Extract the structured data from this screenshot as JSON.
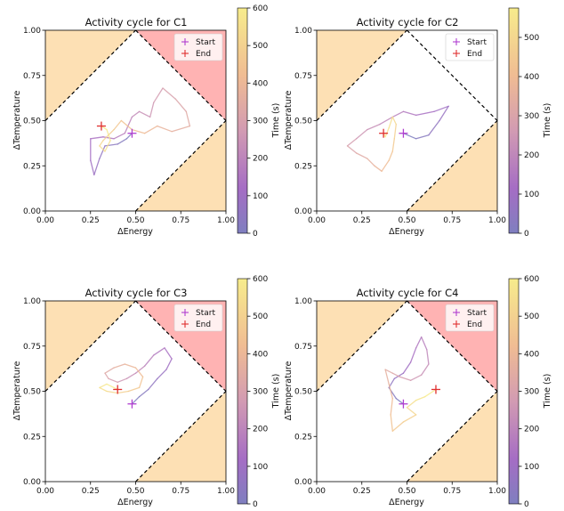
{
  "chart_data": [
    {
      "type": "line",
      "title": "Activity cycle for C1",
      "xlabel": "ΔEnergy",
      "ylabel": "ΔTemperature",
      "xlim": [
        0,
        1
      ],
      "ylim": [
        0,
        1
      ],
      "xticks": [
        "0.00",
        "0.25",
        "0.50",
        "0.75",
        "1.00"
      ],
      "yticks": [
        "0.00",
        "0.25",
        "0.50",
        "0.75",
        "1.00"
      ],
      "colorbar": {
        "label": "Time (s)",
        "ticks": [
          "0",
          "100",
          "200",
          "300",
          "400",
          "500",
          "600"
        ],
        "max": 600
      },
      "legend": {
        "placement": "top-right",
        "start_label": "Start",
        "end_label": "End"
      },
      "start": [
        0.48,
        0.43
      ],
      "end": [
        0.31,
        0.47
      ],
      "trajectory": [
        [
          0.48,
          0.43
        ],
        [
          0.45,
          0.4
        ],
        [
          0.4,
          0.37
        ],
        [
          0.33,
          0.36
        ],
        [
          0.3,
          0.29
        ],
        [
          0.27,
          0.2
        ],
        [
          0.25,
          0.28
        ],
        [
          0.25,
          0.4
        ],
        [
          0.32,
          0.41
        ],
        [
          0.38,
          0.4
        ],
        [
          0.44,
          0.43
        ],
        [
          0.48,
          0.52
        ],
        [
          0.52,
          0.55
        ],
        [
          0.58,
          0.52
        ],
        [
          0.6,
          0.6
        ],
        [
          0.65,
          0.68
        ],
        [
          0.72,
          0.62
        ],
        [
          0.78,
          0.55
        ],
        [
          0.8,
          0.47
        ],
        [
          0.7,
          0.44
        ],
        [
          0.62,
          0.47
        ],
        [
          0.55,
          0.43
        ],
        [
          0.48,
          0.45
        ],
        [
          0.42,
          0.5
        ],
        [
          0.38,
          0.45
        ],
        [
          0.35,
          0.42
        ],
        [
          0.32,
          0.39
        ],
        [
          0.3,
          0.36
        ],
        [
          0.33,
          0.33
        ],
        [
          0.36,
          0.39
        ],
        [
          0.34,
          0.45
        ],
        [
          0.31,
          0.47
        ]
      ]
    },
    {
      "type": "line",
      "title": "Activity cycle for C2",
      "xlabel": "ΔEnergy",
      "ylabel": "ΔTemperature",
      "xlim": [
        0,
        1
      ],
      "ylim": [
        0,
        1
      ],
      "xticks": [
        "0.00",
        "0.25",
        "0.50",
        "0.75",
        "1.00"
      ],
      "yticks": [
        "0.00",
        "0.25",
        "0.50",
        "0.75",
        "1.00"
      ],
      "colorbar": {
        "label": "Time (s)",
        "ticks": [
          "0",
          "100",
          "200",
          "300",
          "400",
          "500"
        ],
        "max": 575
      },
      "legend": {
        "placement": "top-right",
        "start_label": "Start",
        "end_label": "End"
      },
      "start": [
        0.48,
        0.43
      ],
      "end": [
        0.37,
        0.43
      ],
      "trajectory": [
        [
          0.48,
          0.43
        ],
        [
          0.55,
          0.4
        ],
        [
          0.62,
          0.42
        ],
        [
          0.68,
          0.5
        ],
        [
          0.73,
          0.58
        ],
        [
          0.65,
          0.55
        ],
        [
          0.55,
          0.53
        ],
        [
          0.48,
          0.55
        ],
        [
          0.42,
          0.52
        ],
        [
          0.35,
          0.48
        ],
        [
          0.28,
          0.45
        ],
        [
          0.22,
          0.4
        ],
        [
          0.17,
          0.36
        ],
        [
          0.22,
          0.32
        ],
        [
          0.28,
          0.29
        ],
        [
          0.32,
          0.25
        ],
        [
          0.36,
          0.22
        ],
        [
          0.4,
          0.28
        ],
        [
          0.42,
          0.33
        ],
        [
          0.43,
          0.4
        ],
        [
          0.44,
          0.48
        ],
        [
          0.42,
          0.52
        ],
        [
          0.4,
          0.46
        ],
        [
          0.38,
          0.41
        ],
        [
          0.37,
          0.43
        ]
      ]
    },
    {
      "type": "line",
      "title": "Activity cycle for C3",
      "xlabel": "ΔEnergy",
      "ylabel": "ΔTemperature",
      "xlim": [
        0,
        1
      ],
      "ylim": [
        0,
        1
      ],
      "xticks": [
        "0.00",
        "0.25",
        "0.50",
        "0.75",
        "1.00"
      ],
      "yticks": [
        "0.00",
        "0.25",
        "0.50",
        "0.75",
        "1.00"
      ],
      "colorbar": {
        "label": "Time (s)",
        "ticks": [
          "0",
          "100",
          "200",
          "300",
          "400",
          "500",
          "600"
        ],
        "max": 600
      },
      "legend": {
        "placement": "top-right",
        "start_label": "Start",
        "end_label": "End"
      },
      "start": [
        0.48,
        0.43
      ],
      "end": [
        0.4,
        0.51
      ],
      "trajectory": [
        [
          0.48,
          0.43
        ],
        [
          0.52,
          0.47
        ],
        [
          0.57,
          0.51
        ],
        [
          0.62,
          0.57
        ],
        [
          0.67,
          0.62
        ],
        [
          0.7,
          0.68
        ],
        [
          0.66,
          0.74
        ],
        [
          0.6,
          0.7
        ],
        [
          0.55,
          0.64
        ],
        [
          0.5,
          0.6
        ],
        [
          0.45,
          0.57
        ],
        [
          0.4,
          0.55
        ],
        [
          0.35,
          0.57
        ],
        [
          0.33,
          0.6
        ],
        [
          0.38,
          0.63
        ],
        [
          0.44,
          0.65
        ],
        [
          0.5,
          0.63
        ],
        [
          0.54,
          0.58
        ],
        [
          0.52,
          0.52
        ],
        [
          0.46,
          0.5
        ],
        [
          0.4,
          0.49
        ],
        [
          0.34,
          0.5
        ],
        [
          0.3,
          0.52
        ],
        [
          0.34,
          0.54
        ],
        [
          0.4,
          0.51
        ]
      ]
    },
    {
      "type": "line",
      "title": "Activity cycle for C4",
      "xlabel": "ΔEnergy",
      "ylabel": "ΔTemperature",
      "xlim": [
        0,
        1
      ],
      "ylim": [
        0,
        1
      ],
      "xticks": [
        "0.00",
        "0.25",
        "0.50",
        "0.75",
        "1.00"
      ],
      "yticks": [
        "0.00",
        "0.25",
        "0.50",
        "0.75",
        "1.00"
      ],
      "colorbar": {
        "label": "Time (s)",
        "ticks": [
          "0",
          "100",
          "200",
          "300",
          "400",
          "500",
          "600"
        ],
        "max": 600
      },
      "legend": {
        "placement": "top-right",
        "start_label": "Start",
        "end_label": "End"
      },
      "start": [
        0.48,
        0.43
      ],
      "end": [
        0.66,
        0.51
      ],
      "trajectory": [
        [
          0.48,
          0.43
        ],
        [
          0.44,
          0.46
        ],
        [
          0.4,
          0.52
        ],
        [
          0.43,
          0.57
        ],
        [
          0.48,
          0.6
        ],
        [
          0.52,
          0.66
        ],
        [
          0.55,
          0.74
        ],
        [
          0.58,
          0.8
        ],
        [
          0.61,
          0.73
        ],
        [
          0.62,
          0.65
        ],
        [
          0.58,
          0.59
        ],
        [
          0.52,
          0.56
        ],
        [
          0.46,
          0.58
        ],
        [
          0.42,
          0.6
        ],
        [
          0.38,
          0.62
        ],
        [
          0.4,
          0.54
        ],
        [
          0.42,
          0.46
        ],
        [
          0.41,
          0.37
        ],
        [
          0.42,
          0.28
        ],
        [
          0.48,
          0.33
        ],
        [
          0.55,
          0.37
        ],
        [
          0.5,
          0.41
        ],
        [
          0.55,
          0.45
        ],
        [
          0.6,
          0.47
        ],
        [
          0.66,
          0.51
        ]
      ]
    }
  ]
}
